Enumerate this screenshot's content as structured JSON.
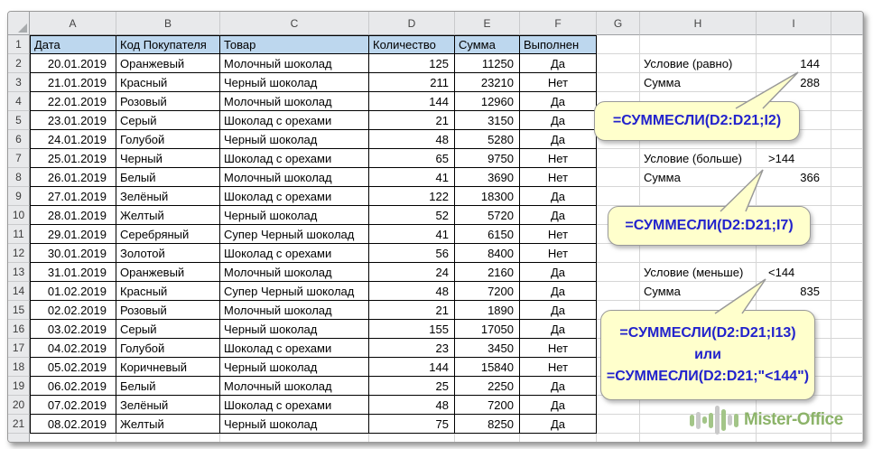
{
  "sheet": {
    "column_letters": [
      "A",
      "B",
      "C",
      "D",
      "E",
      "F",
      "G",
      "H",
      "I"
    ],
    "header": {
      "row_number": "1",
      "cells": [
        "Дата",
        "Код Покупателя",
        "Товар",
        "Количество",
        "Сумма",
        "Выполнен"
      ]
    },
    "rows": [
      {
        "row": 2,
        "date": "20.01.2019",
        "buyer": "Оранжевый",
        "product": "Молочный шоколад",
        "qty": "125",
        "sum": "11250",
        "done": "Да"
      },
      {
        "row": 3,
        "date": "21.01.2019",
        "buyer": "Красный",
        "product": "Черный шоколад",
        "qty": "211",
        "sum": "23210",
        "done": "Нет"
      },
      {
        "row": 4,
        "date": "22.01.2019",
        "buyer": "Розовый",
        "product": "Молочный шоколад",
        "qty": "144",
        "sum": "12960",
        "done": "Да"
      },
      {
        "row": 5,
        "date": "23.01.2019",
        "buyer": "Серый",
        "product": "Шоколад с орехами",
        "qty": "21",
        "sum": "3150",
        "done": "Да"
      },
      {
        "row": 6,
        "date": "24.01.2019",
        "buyer": "Голубой",
        "product": "Черный шоколад",
        "qty": "48",
        "sum": "5280",
        "done": "Да"
      },
      {
        "row": 7,
        "date": "25.01.2019",
        "buyer": "Черный",
        "product": "Шоколад с орехами",
        "qty": "65",
        "sum": "9750",
        "done": "Нет"
      },
      {
        "row": 8,
        "date": "26.01.2019",
        "buyer": "Белый",
        "product": "Молочный шоколад",
        "qty": "41",
        "sum": "3690",
        "done": "Нет"
      },
      {
        "row": 9,
        "date": "27.01.2019",
        "buyer": "Зелёный",
        "product": "Шоколад с орехами",
        "qty": "122",
        "sum": "18300",
        "done": "Да"
      },
      {
        "row": 10,
        "date": "28.01.2019",
        "buyer": "Желтый",
        "product": "Черный шоколад",
        "qty": "52",
        "sum": "5720",
        "done": "Да"
      },
      {
        "row": 11,
        "date": "29.01.2019",
        "buyer": "Серебряный",
        "product": "Супер Черный шоколад",
        "qty": "41",
        "sum": "6150",
        "done": "Нет"
      },
      {
        "row": 12,
        "date": "30.01.2019",
        "buyer": "Золотой",
        "product": "Шоколад с орехами",
        "qty": "56",
        "sum": "8400",
        "done": "Нет"
      },
      {
        "row": 13,
        "date": "31.01.2019",
        "buyer": "Оранжевый",
        "product": "Молочный шоколад",
        "qty": "24",
        "sum": "2160",
        "done": "Да"
      },
      {
        "row": 14,
        "date": "01.02.2019",
        "buyer": "Красный",
        "product": "Супер Черный шоколад",
        "qty": "48",
        "sum": "7200",
        "done": "Да"
      },
      {
        "row": 15,
        "date": "02.02.2019",
        "buyer": "Розовый",
        "product": "Молочный шоколад",
        "qty": "21",
        "sum": "1890",
        "done": "Да"
      },
      {
        "row": 16,
        "date": "03.02.2019",
        "buyer": "Серый",
        "product": "Черный шоколад",
        "qty": "155",
        "sum": "17050",
        "done": "Да"
      },
      {
        "row": 17,
        "date": "04.02.2019",
        "buyer": "Голубой",
        "product": "Шоколад с орехами",
        "qty": "23",
        "sum": "3450",
        "done": "Нет"
      },
      {
        "row": 18,
        "date": "05.02.2019",
        "buyer": "Коричневый",
        "product": "Черный шоколад",
        "qty": "144",
        "sum": "15840",
        "done": "Нет"
      },
      {
        "row": 19,
        "date": "06.02.2019",
        "buyer": "Белый",
        "product": "Молочный шоколад",
        "qty": "25",
        "sum": "2250",
        "done": "Да"
      },
      {
        "row": 20,
        "date": "07.02.2019",
        "buyer": "Зелёный",
        "product": "Шоколад с орехами",
        "qty": "48",
        "sum": "7200",
        "done": "Да"
      },
      {
        "row": 21,
        "date": "08.02.2019",
        "buyer": "Желтый",
        "product": "Черный шоколад",
        "qty": "75",
        "sum": "8250",
        "done": "Да"
      }
    ],
    "side_cells": [
      {
        "row": 2,
        "h": "Условие (равно)",
        "i": "144",
        "i_align": "right"
      },
      {
        "row": 3,
        "h": "Сумма",
        "i": "288",
        "i_align": "right"
      },
      {
        "row": 7,
        "h": "Условие (больше)",
        "i": ">144",
        "i_align": "left"
      },
      {
        "row": 8,
        "h": "Сумма",
        "i": "366",
        "i_align": "right"
      },
      {
        "row": 13,
        "h": "Условие (меньше)",
        "i": "<144",
        "i_align": "left"
      },
      {
        "row": 14,
        "h": "Сумма",
        "i": "835",
        "i_align": "right"
      }
    ],
    "callouts": [
      {
        "lines": [
          "=СУММЕСЛИ(D2:D21;I2)"
        ]
      },
      {
        "lines": [
          "=СУММЕСЛИ(D2:D21;I7)"
        ]
      },
      {
        "lines": [
          "=СУММЕСЛИ(D2:D21;I13)",
          "или",
          "=СУММЕСЛИ(D2:D21;\"<144\")"
        ]
      }
    ]
  },
  "logo": {
    "text": "Mister-Office"
  },
  "colors": {
    "header_fill": "#BDD7EE",
    "callout_fill": "#FFFFCC",
    "callout_text": "#2222CC",
    "logo_green": "#8CB369"
  }
}
